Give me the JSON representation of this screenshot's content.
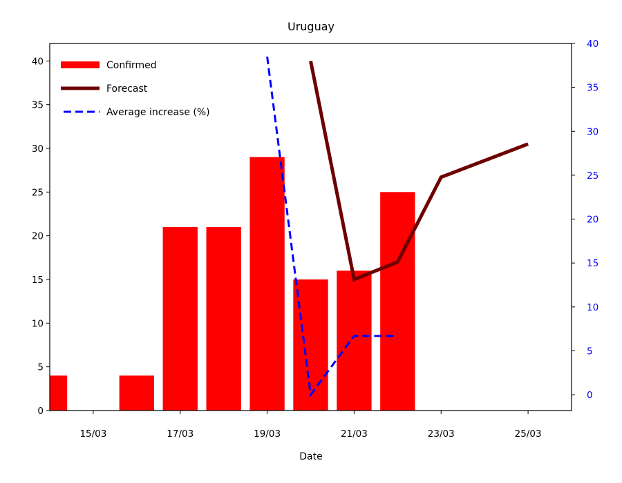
{
  "chart_data": {
    "type": "bar",
    "title": "Uruguay",
    "xlabel": "Date",
    "ylabel": "",
    "ylabel_right": "",
    "x_tick_labels": [
      "15/03",
      "17/03",
      "19/03",
      "21/03",
      "23/03",
      "25/03"
    ],
    "x_tick_days": [
      15,
      17,
      19,
      21,
      23,
      25
    ],
    "xlim_days": [
      14,
      26
    ],
    "ylim": [
      0,
      42
    ],
    "y_ticks": [
      0,
      5,
      10,
      15,
      20,
      25,
      30,
      35,
      40
    ],
    "ylim_right": [
      -1.8,
      40
    ],
    "y_ticks_right": [
      0,
      5,
      10,
      15,
      20,
      25,
      30,
      35,
      40
    ],
    "legend": {
      "placement": "top-left",
      "entries": [
        "Confirmed",
        "Forecast",
        "Average increase (%)"
      ]
    },
    "series": [
      {
        "name": "Confirmed",
        "kind": "bar",
        "color": "#ff0000",
        "axis": "left",
        "points": [
          {
            "x": "14/03",
            "day": 14,
            "y": 4
          },
          {
            "x": "15/03",
            "day": 15,
            "y": 0
          },
          {
            "x": "16/03",
            "day": 16,
            "y": 4
          },
          {
            "x": "17/03",
            "day": 17,
            "y": 21
          },
          {
            "x": "18/03",
            "day": 18,
            "y": 21
          },
          {
            "x": "19/03",
            "day": 19,
            "y": 29
          },
          {
            "x": "20/03",
            "day": 20,
            "y": 15
          },
          {
            "x": "21/03",
            "day": 21,
            "y": 16
          },
          {
            "x": "22/03",
            "day": 22,
            "y": 25
          }
        ]
      },
      {
        "name": "Forecast",
        "kind": "line",
        "color": "#6e0000",
        "axis": "left",
        "points": [
          {
            "x": "20/03",
            "day": 20,
            "y": 40
          },
          {
            "x": "21/03",
            "day": 21,
            "y": 15
          },
          {
            "x": "22/03",
            "day": 22,
            "y": 17
          },
          {
            "x": "23/03",
            "day": 23,
            "y": 26.7
          },
          {
            "x": "25/03",
            "day": 25,
            "y": 30.5
          }
        ]
      },
      {
        "name": "Average increase (%)",
        "kind": "dashed-line",
        "color": "#0000ff",
        "axis": "right",
        "points": [
          {
            "x": "19/03",
            "day": 19,
            "y": 38.5
          },
          {
            "x": "20/03",
            "day": 20,
            "y": 0
          },
          {
            "x": "21/03",
            "day": 21,
            "y": 6.7
          },
          {
            "x": "22/03",
            "day": 22,
            "y": 6.7
          }
        ]
      }
    ]
  }
}
